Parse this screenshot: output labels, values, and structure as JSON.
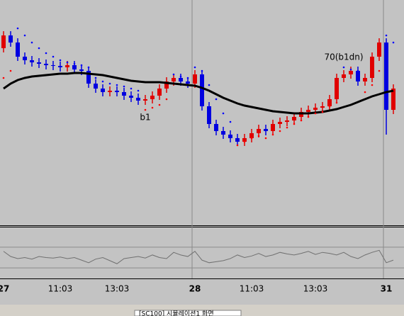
{
  "chart_data": {
    "type": "candlestick",
    "categories": [
      "27",
      null,
      null,
      null,
      null,
      null,
      null,
      null,
      "11:03",
      null,
      null,
      null,
      null,
      null,
      null,
      null,
      "13:03",
      null,
      null,
      null,
      null,
      null,
      null,
      null,
      null,
      null,
      null,
      "28",
      null,
      null,
      null,
      null,
      null,
      null,
      null,
      "11:03",
      null,
      null,
      null,
      null,
      null,
      null,
      null,
      null,
      "13:03",
      null,
      null,
      null,
      null,
      null,
      null,
      null,
      null,
      null,
      "31",
      null
    ],
    "open": [
      250,
      268,
      258,
      238,
      233,
      230,
      228,
      226,
      225,
      223,
      226,
      220,
      218,
      200,
      193,
      188,
      190,
      188,
      183,
      180,
      176,
      178,
      183,
      193,
      203,
      208,
      203,
      200,
      213,
      168,
      143,
      133,
      128,
      123,
      118,
      123,
      130,
      136,
      133,
      143,
      146,
      148,
      153,
      160,
      163,
      166,
      168,
      178,
      208,
      213,
      218,
      203,
      208,
      238,
      258,
      163
    ],
    "high": [
      274,
      274,
      264,
      244,
      239,
      236,
      234,
      232,
      231,
      232,
      232,
      226,
      224,
      206,
      199,
      196,
      196,
      194,
      189,
      186,
      184,
      189,
      199,
      209,
      214,
      214,
      209,
      219,
      219,
      174,
      149,
      139,
      134,
      129,
      129,
      136,
      142,
      142,
      149,
      152,
      154,
      159,
      166,
      169,
      172,
      174,
      184,
      214,
      219,
      224,
      224,
      214,
      244,
      264,
      264,
      199
    ],
    "low": [
      244,
      252,
      232,
      227,
      224,
      222,
      220,
      219,
      217,
      217,
      214,
      212,
      194,
      187,
      182,
      182,
      182,
      177,
      174,
      170,
      170,
      172,
      177,
      187,
      197,
      197,
      194,
      194,
      162,
      137,
      127,
      122,
      117,
      112,
      112,
      117,
      124,
      127,
      127,
      137,
      140,
      142,
      147,
      154,
      157,
      160,
      162,
      172,
      202,
      207,
      197,
      197,
      202,
      232,
      128,
      157
    ],
    "close": [
      268,
      258,
      238,
      233,
      230,
      228,
      226,
      225,
      223,
      226,
      220,
      218,
      200,
      193,
      188,
      190,
      188,
      183,
      180,
      176,
      178,
      183,
      193,
      203,
      208,
      203,
      200,
      213,
      168,
      143,
      133,
      128,
      123,
      118,
      123,
      130,
      136,
      133,
      143,
      146,
      148,
      153,
      160,
      163,
      166,
      168,
      178,
      208,
      213,
      218,
      203,
      208,
      238,
      258,
      163,
      193
    ],
    "up_color": "#e00000",
    "down_color": "#0000e0",
    "moving_average": {
      "color": "#000000",
      "values": [
        193,
        200,
        205,
        208,
        210,
        211,
        212,
        213,
        214,
        214,
        215,
        215,
        214,
        213,
        212,
        210,
        208,
        206,
        204,
        203,
        202,
        202,
        202,
        201,
        200,
        199,
        198,
        197,
        194,
        190,
        185,
        180,
        176,
        172,
        169,
        167,
        165,
        163,
        161,
        160,
        159,
        158,
        158,
        158,
        159,
        160,
        162,
        164,
        167,
        170,
        174,
        178,
        182,
        185,
        188,
        190
      ]
    },
    "sar": {
      "above_color": "#0000ff",
      "below_color": "#ff0000",
      "values": [
        208,
        218,
        278,
        268,
        258,
        250,
        243,
        238,
        233,
        230,
        228,
        226,
        223,
        208,
        203,
        200,
        198,
        196,
        193,
        190,
        163,
        166,
        170,
        178,
        213,
        210,
        208,
        223,
        218,
        198,
        178,
        158,
        146,
        113,
        118,
        123,
        126,
        123,
        128,
        133,
        138,
        143,
        148,
        153,
        158,
        160,
        168,
        173,
        223,
        220,
        218,
        188,
        198,
        218,
        268,
        258
      ]
    },
    "ylim": [
      0,
      318
    ],
    "annotations": [
      {
        "text": "b1",
        "index": 20
      },
      {
        "text": "70(b1dn)",
        "index": 48
      }
    ],
    "indicator": {
      "color": "#707070",
      "ylim": [
        0,
        100
      ],
      "levels": [
        70,
        30
      ],
      "values": [
        62,
        52,
        48,
        50,
        47,
        52,
        50,
        49,
        51,
        48,
        50,
        45,
        40,
        47,
        50,
        44,
        38,
        48,
        50,
        52,
        49,
        55,
        50,
        48,
        60,
        55,
        52,
        62,
        45,
        40,
        42,
        44,
        48,
        55,
        50,
        53,
        58,
        52,
        55,
        60,
        57,
        55,
        58,
        62,
        56,
        60,
        58,
        55,
        60,
        52,
        48,
        55,
        60,
        64,
        40,
        45
      ]
    }
  },
  "tab": {
    "label": "[SC100] 시뮬레이션1 화면"
  }
}
